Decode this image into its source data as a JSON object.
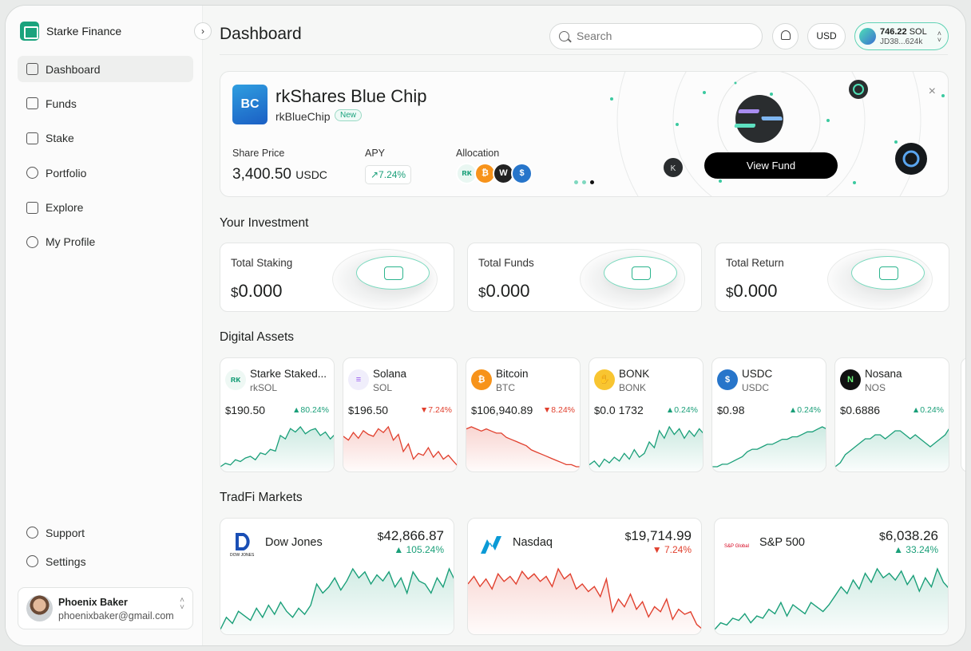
{
  "brand": {
    "name": "Starke Finance"
  },
  "sidebar": {
    "collapse_glyph": "›",
    "items": [
      {
        "label": "Dashboard",
        "icon": "home-icon"
      },
      {
        "label": "Funds",
        "icon": "funds-icon"
      },
      {
        "label": "Stake",
        "icon": "stake-icon"
      },
      {
        "label": "Portfolio",
        "icon": "portfolio-icon"
      },
      {
        "label": "Explore",
        "icon": "explore-icon"
      },
      {
        "label": "My Profile",
        "icon": "profile-icon"
      }
    ],
    "bottom_items": [
      {
        "label": "Support",
        "icon": "support-icon"
      },
      {
        "label": "Settings",
        "icon": "settings-icon"
      }
    ],
    "user": {
      "name": "Phoenix Baker",
      "email": "phoenixbaker@gmail.com"
    }
  },
  "header": {
    "title": "Dashboard",
    "search_placeholder": "Search",
    "currency": "USD",
    "wallet": {
      "balance": "746.22",
      "unit": "SOL",
      "address": "JD38...624k"
    }
  },
  "hero": {
    "logo_text": "BC",
    "title": "rkShares Blue Chip",
    "ticker": "rkBlueChip",
    "badge": "New",
    "share_price_label": "Share Price",
    "share_price": "3,400.50",
    "share_price_unit": "USDC",
    "apy_label": "APY",
    "apy": "↗7.24%",
    "allocation_label": "Allocation",
    "allocation": [
      {
        "text": "ʀᴋ",
        "bg": "#e9f7f2",
        "fg": "#1a9f79"
      },
      {
        "text": "₿",
        "bg": "#f7931a",
        "fg": "#ffffff"
      },
      {
        "text": "W",
        "bg": "#222222",
        "fg": "#ffffff"
      },
      {
        "text": "$",
        "bg": "#2775ca",
        "fg": "#ffffff"
      }
    ],
    "cta": "View Fund",
    "close": "×"
  },
  "investment": {
    "title": "Your Investment",
    "cards": [
      {
        "label": "Total Staking",
        "currency": "$",
        "value": "0.000"
      },
      {
        "label": "Total Funds",
        "currency": "$",
        "value": "0.000"
      },
      {
        "label": "Total Return",
        "currency": "$",
        "value": "0.000"
      }
    ]
  },
  "assets": {
    "title": "Digital Assets",
    "items": [
      {
        "name": "Starke Staked...",
        "symbol": "rkSOL",
        "price": "190.50",
        "change": "80.24%",
        "dir": "up",
        "icon_text": "ʀᴋ",
        "icon_bg": "#eef8f4",
        "icon_fg": "#1a9f79",
        "series": [
          4,
          6,
          5,
          8,
          7,
          9,
          10,
          8,
          12,
          11,
          14,
          13,
          22,
          20,
          26,
          24,
          27,
          23,
          25,
          26,
          22,
          24,
          20,
          23
        ]
      },
      {
        "name": "Solana",
        "symbol": "SOL",
        "price": "196.50",
        "change": "7.24%",
        "dir": "down",
        "icon_text": "≡",
        "icon_bg": "#f0eefb",
        "icon_fg": "#9a5cf0",
        "series": [
          20,
          18,
          22,
          19,
          23,
          21,
          20,
          24,
          22,
          25,
          18,
          21,
          12,
          16,
          8,
          11,
          10,
          14,
          9,
          12,
          8,
          10,
          7,
          4
        ]
      },
      {
        "name": "Bitcoin",
        "symbol": "BTC",
        "price": "106,940.89",
        "change": "8.24%",
        "dir": "down",
        "icon_text": "₿",
        "icon_bg": "#f7931a",
        "icon_fg": "#ffffff",
        "series": [
          26,
          27,
          26,
          25,
          26,
          25,
          24,
          24,
          22,
          21,
          20,
          19,
          18,
          16,
          15,
          14,
          13,
          12,
          11,
          10,
          9,
          9,
          8,
          8
        ]
      },
      {
        "name": "BONK",
        "symbol": "BONK",
        "price": "0.0 1732",
        "change": "0.24%",
        "dir": "up",
        "icon_text": "✋",
        "icon_bg": "#f8c531",
        "icon_fg": "#7a4a00",
        "series": [
          6,
          8,
          5,
          9,
          7,
          10,
          8,
          12,
          9,
          14,
          10,
          12,
          18,
          15,
          24,
          20,
          26,
          22,
          25,
          20,
          24,
          21,
          25,
          22
        ]
      },
      {
        "name": "USDC",
        "symbol": "USDC",
        "price": "0.98",
        "change": "0.24%",
        "dir": "up",
        "icon_text": "$",
        "icon_bg": "#2775ca",
        "icon_fg": "#ffffff",
        "series": [
          8,
          8,
          9,
          9,
          10,
          11,
          12,
          14,
          15,
          15,
          16,
          17,
          17,
          18,
          19,
          19,
          20,
          20,
          21,
          22,
          22,
          23,
          24,
          23
        ]
      },
      {
        "name": "Nosana",
        "symbol": "NOS",
        "price": "0.6886",
        "change": "0.24%",
        "dir": "up",
        "icon_text": "N",
        "icon_bg": "#111111",
        "icon_fg": "#6cf27a",
        "series": [
          10,
          11,
          13,
          14,
          15,
          16,
          17,
          17,
          18,
          18,
          17,
          18,
          19,
          19,
          18,
          17,
          18,
          17,
          16,
          15,
          16,
          17,
          18,
          20
        ]
      }
    ]
  },
  "tradfi": {
    "title": "TradFi Markets",
    "items": [
      {
        "name": "Dow Jones",
        "logo_text": "DOW JONES",
        "price": "42,866.87",
        "change": "105.24%",
        "dir": "up",
        "series": [
          6,
          14,
          10,
          18,
          15,
          12,
          20,
          14,
          22,
          16,
          24,
          18,
          14,
          20,
          16,
          22,
          36,
          30,
          34,
          40,
          32,
          38,
          46,
          40,
          44,
          36,
          42,
          38,
          44,
          34,
          40,
          30,
          44,
          38,
          36,
          30,
          40,
          34,
          46,
          38
        ]
      },
      {
        "name": "Nasdaq",
        "logo_text": "N",
        "price": "19,714.99",
        "change": "7.24%",
        "dir": "down",
        "series": [
          42,
          48,
          40,
          46,
          38,
          50,
          44,
          48,
          42,
          52,
          46,
          50,
          44,
          48,
          40,
          54,
          46,
          50,
          38,
          42,
          36,
          40,
          32,
          46,
          20,
          30,
          24,
          34,
          22,
          28,
          16,
          24,
          20,
          30,
          14,
          22,
          18,
          20,
          10,
          6
        ]
      },
      {
        "name": "S&P 500",
        "logo_text": "S&P Global",
        "price": "6,038.26",
        "change": "33.24%",
        "dir": "up",
        "series": [
          6,
          12,
          10,
          16,
          14,
          20,
          12,
          18,
          16,
          24,
          20,
          30,
          18,
          28,
          24,
          20,
          30,
          26,
          22,
          28,
          36,
          44,
          38,
          50,
          42,
          56,
          48,
          60,
          52,
          56,
          50,
          58,
          46,
          54,
          40,
          52,
          44,
          60,
          48,
          42
        ]
      }
    ]
  },
  "colors": {
    "accent": "#1aa37d",
    "up": "#1a9f79",
    "down": "#e1402e"
  }
}
